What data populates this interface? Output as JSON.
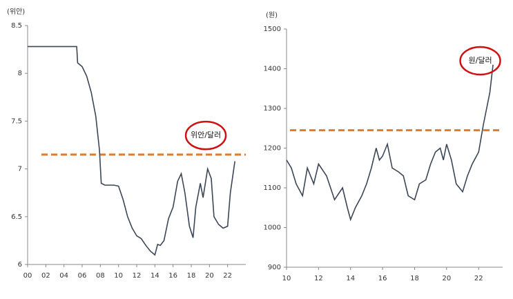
{
  "chart_data": [
    {
      "type": "line",
      "unit_label": "(위안)",
      "annotation": "위안/달러",
      "xlim": [
        0,
        24
      ],
      "ylim": [
        6,
        8.5
      ],
      "xticks": [
        {
          "value": 0,
          "label": "00"
        },
        {
          "value": 2,
          "label": "02"
        },
        {
          "value": 4,
          "label": "04"
        },
        {
          "value": 6,
          "label": "06"
        },
        {
          "value": 8,
          "label": "08"
        },
        10,
        12,
        14,
        16,
        18,
        20,
        22
      ],
      "yticks": [
        6,
        6.5,
        7,
        7.5,
        8,
        8.5
      ],
      "reference_line": 7.15,
      "reference_color": "#e07b2a",
      "x": [
        0,
        5.4,
        5.5,
        6,
        6.5,
        7,
        7.5,
        7.9,
        8.1,
        8.5,
        9,
        9.5,
        10,
        10.5,
        11,
        11.5,
        12,
        12.5,
        13,
        13.5,
        14,
        14.3,
        14.6,
        15,
        15.5,
        16,
        16.5,
        16.9,
        17.3,
        17.8,
        18.2,
        18.5,
        19,
        19.3,
        19.8,
        20.2,
        20.5,
        21,
        21.5,
        22,
        22.3,
        22.8
      ],
      "series": [
        {
          "color": "#3a4556",
          "values": [
            8.28,
            8.28,
            8.11,
            8.07,
            7.97,
            7.8,
            7.55,
            7.2,
            6.85,
            6.83,
            6.83,
            6.83,
            6.82,
            6.68,
            6.5,
            6.38,
            6.3,
            6.27,
            6.2,
            6.14,
            6.1,
            6.21,
            6.2,
            6.25,
            6.48,
            6.6,
            6.87,
            6.95,
            6.75,
            6.4,
            6.28,
            6.6,
            6.85,
            6.7,
            7,
            6.9,
            6.5,
            6.42,
            6.38,
            6.4,
            6.75,
            7.08
          ]
        }
      ]
    },
    {
      "type": "line",
      "unit_label": "(원)",
      "annotation": "원/달러",
      "xlim": [
        10,
        23.5
      ],
      "ylim": [
        900,
        1500
      ],
      "xticks": [
        10,
        12,
        14,
        16,
        18,
        20,
        22
      ],
      "yticks": [
        900,
        1000,
        1100,
        1200,
        1300,
        1400,
        1500
      ],
      "reference_line": 1245,
      "reference_color": "#e07b2a",
      "x": [
        10,
        10.3,
        10.6,
        11,
        11.3,
        11.7,
        12,
        12.5,
        13,
        13.5,
        13.8,
        14,
        14.3,
        14.7,
        15,
        15.3,
        15.6,
        15.8,
        16,
        16.3,
        16.6,
        17,
        17.3,
        17.6,
        18,
        18.3,
        18.7,
        19,
        19.3,
        19.6,
        19.8,
        20,
        20.3,
        20.6,
        21,
        21.3,
        21.6,
        22,
        22.3,
        22.5,
        22.7,
        22.9
      ],
      "series": [
        {
          "color": "#3a4556",
          "values": [
            1170,
            1150,
            1110,
            1080,
            1150,
            1110,
            1160,
            1130,
            1070,
            1100,
            1050,
            1020,
            1050,
            1080,
            1110,
            1150,
            1200,
            1170,
            1180,
            1210,
            1150,
            1140,
            1130,
            1080,
            1070,
            1110,
            1120,
            1160,
            1190,
            1200,
            1170,
            1210,
            1170,
            1110,
            1090,
            1130,
            1160,
            1190,
            1260,
            1300,
            1340,
            1410
          ]
        }
      ]
    }
  ]
}
